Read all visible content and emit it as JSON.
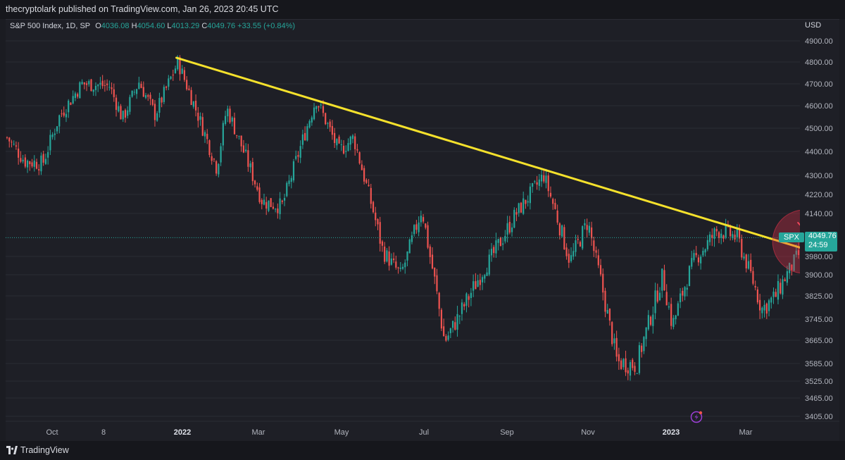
{
  "header": {
    "publish_line": "thecryptolark published on TradingView.com, Jan 26, 2023 20:45 UTC"
  },
  "legend": {
    "symbol_line": "S&P 500 Index, 1D, SP",
    "o_label": "O",
    "o_value": "4036.08",
    "h_label": "H",
    "h_value": "4054.60",
    "l_label": "L",
    "l_value": "4013.29",
    "c_label": "C",
    "c_value": "4049.76",
    "change": "+33.55 (+0.84%)"
  },
  "price_tag": {
    "ticker": "SPX",
    "price": "4049.76",
    "countdown": "24:59"
  },
  "footer": {
    "brand": "TradingView"
  },
  "colors": {
    "up": "#26a69a",
    "down": "#ef5350",
    "trendline": "#f5e12c",
    "annotation": "#e0324a",
    "background": "#1e1f26",
    "grid": "#2a2c34"
  },
  "chart_data": {
    "type": "candlestick",
    "title": "",
    "currency": "USD",
    "y_axis_label": "USD",
    "y_ticks": [
      4900,
      4800,
      4700,
      4600,
      4500,
      4400,
      4300,
      4220,
      4140,
      3980,
      3900,
      3825,
      3745,
      3665,
      3585,
      3525,
      3465,
      3405
    ],
    "y_range": [
      3380,
      4950
    ],
    "x_ticks": [
      "Oct",
      "8",
      "2022",
      "Mar",
      "May",
      "Jul",
      "Sep",
      "Nov",
      "2023",
      "Mar"
    ],
    "x_ticks_bold": [
      "2022",
      "2023"
    ],
    "last_close": 4049.76,
    "price_path": [
      [
        "2021-09-20",
        4460
      ],
      [
        "2021-10-01",
        4360
      ],
      [
        "2021-10-12",
        4350
      ],
      [
        "2021-10-22",
        4550
      ],
      [
        "2021-11-05",
        4700
      ],
      [
        "2021-11-22",
        4690
      ],
      [
        "2021-11-30",
        4540
      ],
      [
        "2021-12-10",
        4710
      ],
      [
        "2021-12-20",
        4560
      ],
      [
        "2022-01-03",
        4800
      ],
      [
        "2022-01-27",
        4330
      ],
      [
        "2022-02-02",
        4590
      ],
      [
        "2022-02-24",
        4190
      ],
      [
        "2022-03-08",
        4170
      ],
      [
        "2022-03-29",
        4630
      ],
      [
        "2022-04-12",
        4400
      ],
      [
        "2022-04-21",
        4460
      ],
      [
        "2022-05-09",
        4000
      ],
      [
        "2022-05-20",
        3900
      ],
      [
        "2022-06-02",
        4160
      ],
      [
        "2022-06-16",
        3660
      ],
      [
        "2022-07-08",
        3900
      ],
      [
        "2022-07-29",
        4130
      ],
      [
        "2022-08-16",
        4300
      ],
      [
        "2022-09-01",
        3960
      ],
      [
        "2022-09-12",
        4110
      ],
      [
        "2022-09-30",
        3590
      ],
      [
        "2022-10-12",
        3580
      ],
      [
        "2022-10-28",
        3900
      ],
      [
        "2022-11-03",
        3720
      ],
      [
        "2022-11-16",
        3960
      ],
      [
        "2022-12-01",
        4080
      ],
      [
        "2022-12-13",
        4050
      ],
      [
        "2022-12-28",
        3780
      ],
      [
        "2023-01-05",
        3820
      ],
      [
        "2023-01-20",
        3990
      ],
      [
        "2023-01-26",
        4049.76
      ]
    ],
    "trendline": {
      "start": [
        "2022-01-03",
        4820
      ],
      "end": [
        "2023-03-15",
        3905
      ]
    },
    "annotation": {
      "type": "circle-with-down-arrow",
      "center": [
        "2023-01-24",
        4035
      ]
    }
  }
}
